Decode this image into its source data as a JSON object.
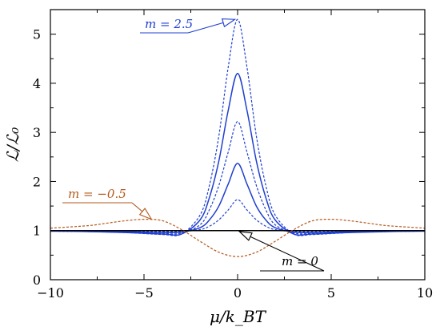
{
  "chart_data": {
    "type": "line",
    "title": "",
    "xlabel": "μ/k_BT",
    "ylabel": "ℒ/ℒ₀",
    "xlim": [
      -10,
      10
    ],
    "ylim": [
      0,
      5.5
    ],
    "xticks": [
      -10,
      -5,
      0,
      5,
      10
    ],
    "yticks": [
      0,
      1,
      2,
      3,
      4,
      5
    ],
    "grid": false,
    "legend": "none",
    "series": [
      {
        "style": "dashed",
        "color": "#1f3fd0",
        "x": [
          -10,
          -8,
          -6,
          -4,
          -3,
          -2,
          -1.5,
          -1,
          -0.5,
          0,
          0.5,
          1,
          1.5,
          2,
          3,
          4,
          6,
          8,
          10
        ],
        "y": [
          0.99,
          0.98,
          0.96,
          0.92,
          0.93,
          1.32,
          1.93,
          2.93,
          4.33,
          5.3,
          4.33,
          2.93,
          1.93,
          1.32,
          0.93,
          0.92,
          0.96,
          0.98,
          0.99
        ]
      },
      {
        "style": "solid",
        "color": "#1f3fd0",
        "x": [
          -10,
          -8,
          -6,
          -4,
          -3,
          -2,
          -1.5,
          -1,
          -0.5,
          0,
          0.5,
          1,
          1.5,
          2,
          3,
          4,
          6,
          8,
          10
        ],
        "y": [
          0.99,
          0.98,
          0.96,
          0.93,
          0.93,
          1.22,
          1.68,
          2.42,
          3.45,
          4.2,
          3.45,
          2.42,
          1.68,
          1.22,
          0.93,
          0.93,
          0.96,
          0.98,
          0.99
        ]
      },
      {
        "style": "dashed",
        "color": "#1f3fd0",
        "x": [
          -10,
          -8,
          -6,
          -4,
          -3,
          -2,
          -1.5,
          -1,
          -0.5,
          0,
          0.5,
          1,
          1.5,
          2,
          3,
          4,
          6,
          8,
          10
        ],
        "y": [
          0.99,
          0.98,
          0.97,
          0.94,
          0.95,
          1.12,
          1.43,
          1.92,
          2.6,
          3.22,
          2.6,
          1.92,
          1.43,
          1.12,
          0.95,
          0.94,
          0.97,
          0.98,
          0.99
        ]
      },
      {
        "style": "solid",
        "color": "#1f3fd0",
        "x": [
          -10,
          -8,
          -6,
          -4,
          -3,
          -2,
          -1.5,
          -1,
          -0.5,
          0,
          0.5,
          1,
          1.5,
          2,
          3,
          4,
          6,
          8,
          10
        ],
        "y": [
          0.99,
          0.99,
          0.98,
          0.96,
          0.97,
          1.06,
          1.22,
          1.5,
          1.95,
          2.37,
          1.95,
          1.5,
          1.22,
          1.06,
          0.97,
          0.96,
          0.98,
          0.99,
          0.99
        ]
      },
      {
        "style": "dashed",
        "color": "#1f3fd0",
        "x": [
          -10,
          -8,
          -6,
          -4,
          -3,
          -2,
          -1.5,
          -1,
          -0.5,
          0,
          0.5,
          1,
          1.5,
          2,
          3,
          4,
          6,
          8,
          10
        ],
        "y": [
          1.0,
          0.99,
          0.99,
          0.98,
          0.98,
          1.02,
          1.09,
          1.22,
          1.42,
          1.63,
          1.42,
          1.22,
          1.09,
          1.02,
          0.98,
          0.98,
          0.99,
          0.99,
          1.0
        ]
      },
      {
        "name": "m = 0",
        "style": "solid",
        "color": "#000000",
        "x": [
          -10,
          10
        ],
        "y": [
          1.0,
          1.0
        ]
      },
      {
        "name": "m = −0.5",
        "style": "dashed",
        "color": "#b5581b",
        "x": [
          -10,
          -8,
          -7,
          -6,
          -5,
          -4,
          -3,
          -2,
          -1,
          0,
          1,
          2,
          3,
          4,
          5,
          6,
          7,
          8,
          10
        ],
        "y": [
          1.05,
          1.1,
          1.15,
          1.2,
          1.23,
          1.2,
          1.02,
          0.78,
          0.56,
          0.47,
          0.56,
          0.78,
          1.02,
          1.2,
          1.23,
          1.2,
          1.15,
          1.1,
          1.05
        ]
      }
    ],
    "annotations": [
      {
        "text": "m = 2.5",
        "color": "#1f3fd0",
        "points_to": [
          -0.15,
          5.3
        ]
      },
      {
        "text": "m = −0.5",
        "color": "#b5581b",
        "points_to": [
          -4.6,
          1.23
        ]
      },
      {
        "text": "m = 0",
        "color": "#000000",
        "points_to": [
          0.1,
          0.98
        ]
      }
    ]
  }
}
